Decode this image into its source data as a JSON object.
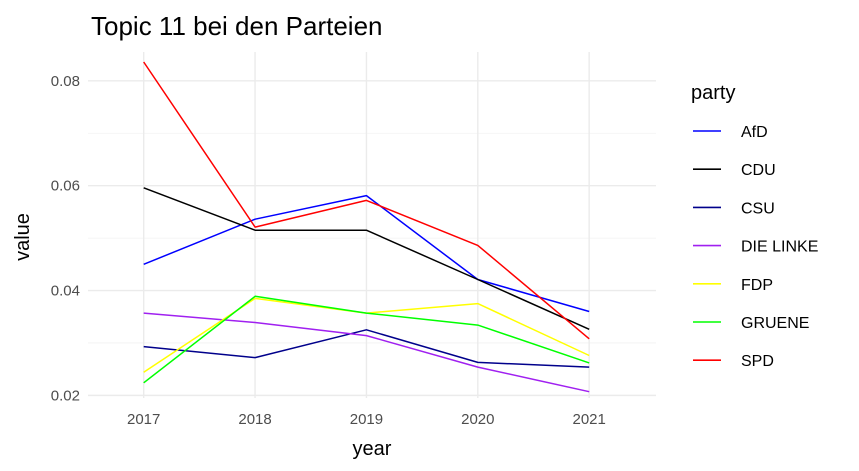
{
  "chart_data": {
    "type": "line",
    "title": "Topic 11 bei den Parteien",
    "xlabel": "year",
    "ylabel": "value",
    "x": [
      2017,
      2018,
      2019,
      2020,
      2021
    ],
    "x_ticks": [
      "2017",
      "2018",
      "2019",
      "2020",
      "2021"
    ],
    "xlim": [
      2016.5,
      2021.6
    ],
    "y_ticks": [
      "0.02",
      "0.04",
      "0.06",
      "0.08"
    ],
    "y_tick_values": [
      0.02,
      0.04,
      0.06,
      0.08
    ],
    "ylim": [
      0.0195,
      0.0855
    ],
    "grid": true,
    "legend_title": "party",
    "legend_position": "right",
    "series": [
      {
        "name": "AfD",
        "color": "#0000ff",
        "values": [
          0.045,
          0.0536,
          0.0581,
          0.0421,
          0.036
        ]
      },
      {
        "name": "CDU",
        "color": "#000000",
        "values": [
          0.0596,
          0.0515,
          0.0515,
          0.0421,
          0.0326
        ]
      },
      {
        "name": "CSU",
        "color": "#00008b",
        "values": [
          0.0293,
          0.0272,
          0.0325,
          0.0263,
          0.0254
        ]
      },
      {
        "name": "DIE LINKE",
        "color": "#a020f0",
        "values": [
          0.0357,
          0.0339,
          0.0314,
          0.0254,
          0.0207
        ]
      },
      {
        "name": "FDP",
        "color": "#ffff00",
        "values": [
          0.0244,
          0.0385,
          0.0357,
          0.0375,
          0.0276
        ]
      },
      {
        "name": "GRUENE",
        "color": "#00ff00",
        "values": [
          0.0224,
          0.0389,
          0.0357,
          0.0334,
          0.0262
        ]
      },
      {
        "name": "SPD",
        "color": "#ff0000",
        "values": [
          0.0836,
          0.0521,
          0.0572,
          0.0486,
          0.0308
        ]
      }
    ]
  }
}
